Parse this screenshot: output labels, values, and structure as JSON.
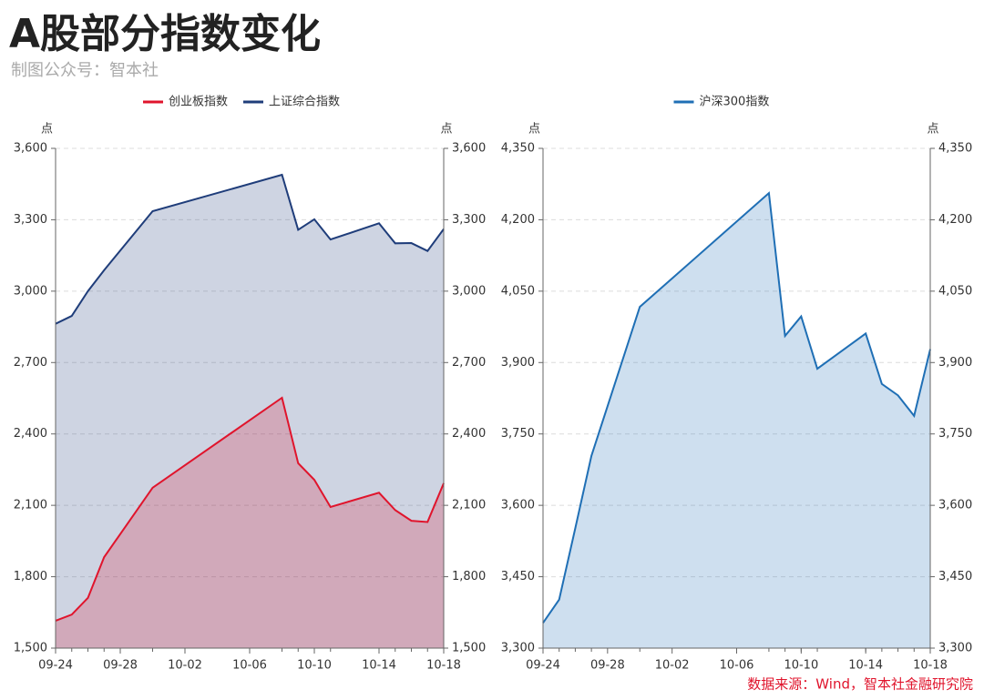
{
  "title": "A股部分指数变化",
  "subtitle": "制图公众号：智本社",
  "source": "数据来源：Wind，智本社金融研究院",
  "chart_data": [
    {
      "type": "line",
      "fill": true,
      "grid": true,
      "legend": "top",
      "x": [
        "09-24",
        "09-25",
        "09-26",
        "09-27",
        "09-30",
        "10-08",
        "10-09",
        "10-10",
        "10-11",
        "10-14",
        "10-15",
        "10-16",
        "10-17",
        "10-18"
      ],
      "xlim": [
        "09-24",
        "10-18"
      ],
      "xticks": [
        "09-24",
        "09-28",
        "10-02",
        "10-06",
        "10-10",
        "10-14",
        "10-18"
      ],
      "ylabel": "点",
      "y2label": "点",
      "ylim": [
        1500,
        3600
      ],
      "yticks": [
        {
          "value": 1500,
          "label": "1,500"
        },
        {
          "value": 1800,
          "label": "1,800"
        },
        {
          "value": 2100,
          "label": "2,100"
        },
        {
          "value": 2400,
          "label": "2,400"
        },
        {
          "value": 2700,
          "label": "2,700"
        },
        {
          "value": 3000,
          "label": "3,000"
        },
        {
          "value": 3300,
          "label": "3,300"
        },
        {
          "value": 3600,
          "label": "3,600"
        }
      ],
      "y2lim": [
        1500,
        3600
      ],
      "y2ticks": [
        {
          "value": 1500,
          "label": "1,500"
        },
        {
          "value": 1800,
          "label": "1,800"
        },
        {
          "value": 2100,
          "label": "2,100"
        },
        {
          "value": 2400,
          "label": "2,400"
        },
        {
          "value": 2700,
          "label": "2,700"
        },
        {
          "value": 3000,
          "label": "3,000"
        },
        {
          "value": 3300,
          "label": "3,300"
        },
        {
          "value": 3600,
          "label": "3,600"
        }
      ],
      "series": [
        {
          "name": "创业板指数",
          "color": "#e0142c",
          "values": [
            1615,
            1641,
            1711,
            1882,
            2174,
            2552,
            2277,
            2207,
            2093,
            2153,
            2080,
            2035,
            2030,
            2193
          ]
        },
        {
          "name": "上证综合指数",
          "color": "#1f3d7a",
          "values": [
            2863,
            2896,
            3000,
            3088,
            3336,
            3489,
            3258,
            3302,
            3217,
            3285,
            3201,
            3202,
            3169,
            3261
          ]
        }
      ]
    },
    {
      "type": "line",
      "fill": true,
      "grid": true,
      "legend": "top",
      "x": [
        "09-24",
        "09-25",
        "09-26",
        "09-27",
        "09-30",
        "10-08",
        "10-09",
        "10-10",
        "10-11",
        "10-14",
        "10-15",
        "10-16",
        "10-17",
        "10-18"
      ],
      "xlim": [
        "09-24",
        "10-18"
      ],
      "xticks": [
        "09-24",
        "09-28",
        "10-02",
        "10-06",
        "10-10",
        "10-14",
        "10-18"
      ],
      "ylabel": "点",
      "y2label": "点",
      "ylim": [
        3300,
        4350
      ],
      "yticks": [
        {
          "value": 3300,
          "label": "3,300"
        },
        {
          "value": 3450,
          "label": "3,450"
        },
        {
          "value": 3600,
          "label": "3,600"
        },
        {
          "value": 3750,
          "label": "3,750"
        },
        {
          "value": 3900,
          "label": "3,900"
        },
        {
          "value": 4050,
          "label": "4,050"
        },
        {
          "value": 4200,
          "label": "4,200"
        },
        {
          "value": 4350,
          "label": "4,350"
        }
      ],
      "y2lim": [
        3300,
        4350
      ],
      "y2ticks": [
        {
          "value": 3300,
          "label": "3,300"
        },
        {
          "value": 3450,
          "label": "3,450"
        },
        {
          "value": 3600,
          "label": "3,600"
        },
        {
          "value": 3750,
          "label": "3,750"
        },
        {
          "value": 3900,
          "label": "3,900"
        },
        {
          "value": 4050,
          "label": "4,050"
        },
        {
          "value": 4200,
          "label": "4,200"
        },
        {
          "value": 4350,
          "label": "4,350"
        }
      ],
      "series": [
        {
          "name": "沪深300指数",
          "color": "#1f6fb5",
          "values": [
            3353,
            3402,
            3552,
            3704,
            4017,
            4256,
            3956,
            3997,
            3887,
            3961,
            3855,
            3831,
            3788,
            3928
          ]
        }
      ]
    }
  ]
}
